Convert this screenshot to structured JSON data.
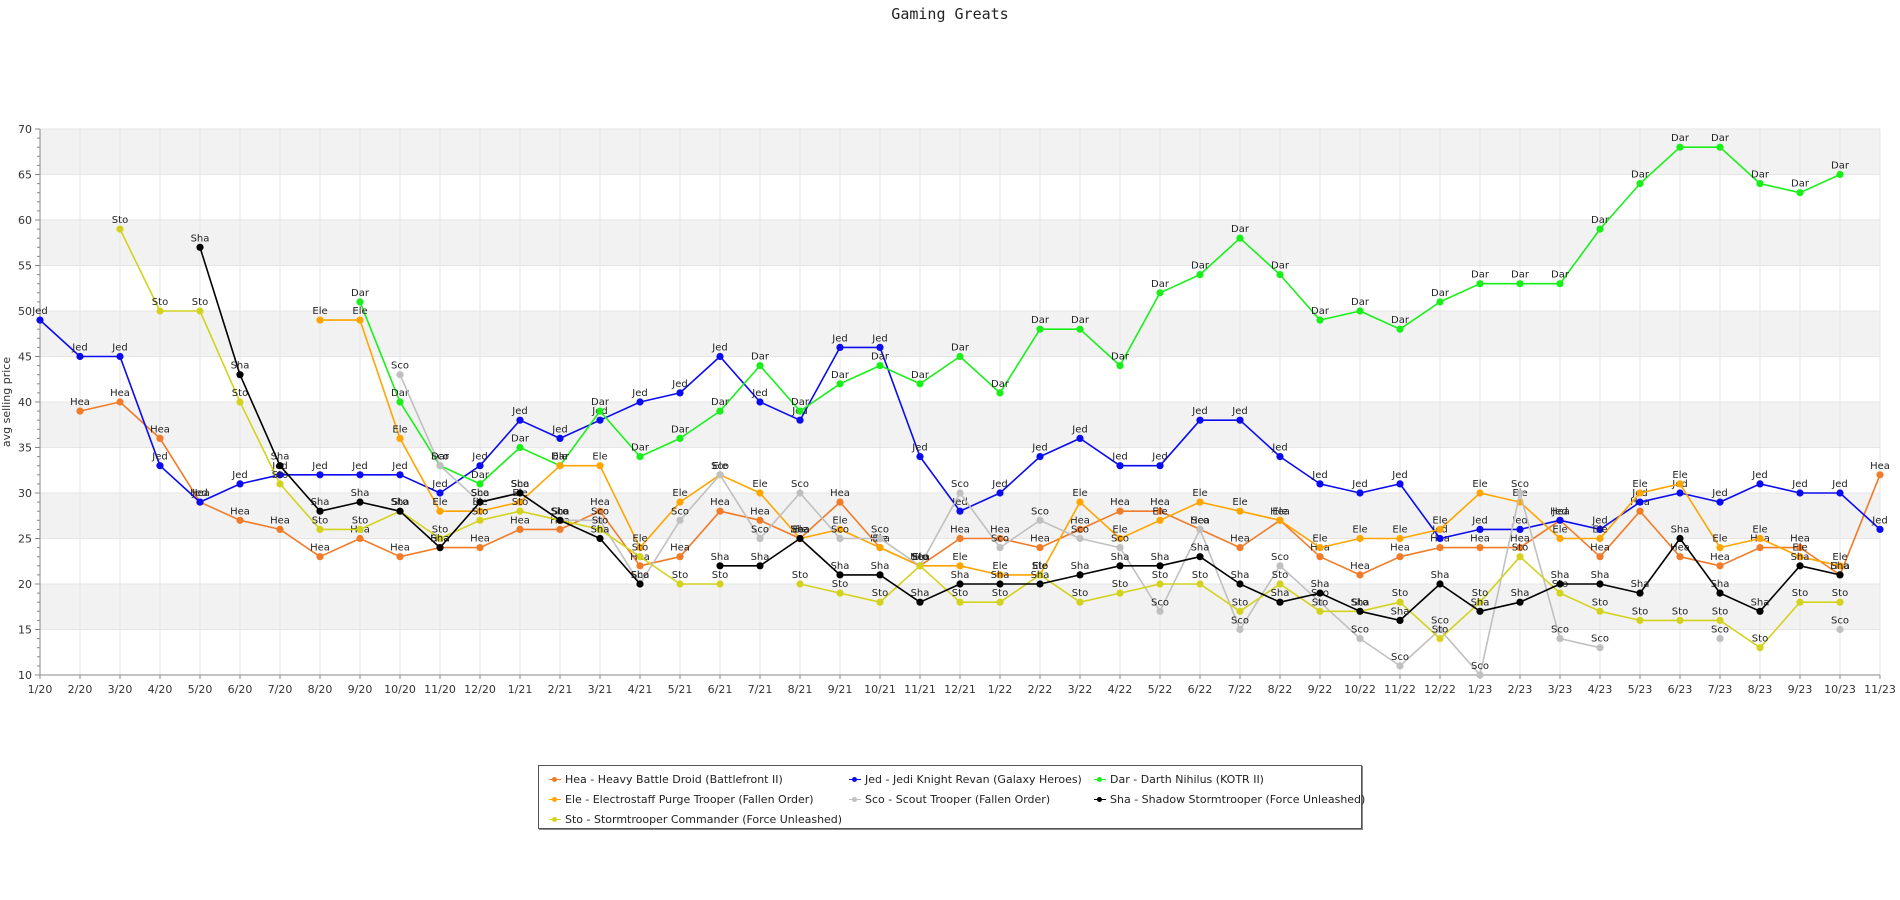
{
  "chart_data": {
    "type": "line",
    "title": "Gaming Greats",
    "ylabel": "avg selling price",
    "xlabel": "",
    "ylim": [
      10,
      70
    ],
    "yticks": [
      10,
      15,
      20,
      25,
      30,
      35,
      40,
      45,
      50,
      55,
      60,
      65,
      70
    ],
    "grid": true,
    "legend": "bottom-center",
    "categories": [
      "1/20",
      "2/20",
      "3/20",
      "4/20",
      "5/20",
      "6/20",
      "7/20",
      "8/20",
      "9/20",
      "10/20",
      "11/20",
      "12/20",
      "1/21",
      "2/21",
      "3/21",
      "4/21",
      "5/21",
      "6/21",
      "7/21",
      "8/21",
      "9/21",
      "10/21",
      "11/21",
      "12/21",
      "1/22",
      "2/22",
      "3/22",
      "4/22",
      "5/22",
      "6/22",
      "7/22",
      "8/22",
      "9/22",
      "10/22",
      "11/22",
      "12/22",
      "1/23",
      "2/23",
      "3/23",
      "4/23",
      "5/23",
      "6/23",
      "7/23",
      "8/23",
      "9/23",
      "10/23",
      "11/23"
    ],
    "series": [
      {
        "name": "Hea - Heavy Battle Droid (Battlefront II)",
        "short": "Hea",
        "color": "#f07b28",
        "values": [
          null,
          39,
          40,
          36,
          29,
          27,
          26,
          23,
          25,
          23,
          24,
          24,
          26,
          26,
          28,
          22,
          23,
          28,
          27,
          25,
          29,
          24,
          22,
          25,
          25,
          24,
          26,
          28,
          28,
          26,
          24,
          27,
          23,
          21,
          23,
          24,
          24,
          24,
          27,
          23,
          28,
          23,
          22,
          24,
          24,
          21,
          32
        ]
      },
      {
        "name": "Jed - Jedi Knight Revan (Galaxy Heroes)",
        "short": "Jed",
        "color": "#0b0bf0",
        "values": [
          49,
          45,
          45,
          33,
          29,
          31,
          32,
          32,
          32,
          32,
          30,
          33,
          38,
          36,
          38,
          40,
          41,
          45,
          40,
          38,
          46,
          46,
          34,
          28,
          30,
          34,
          36,
          33,
          33,
          38,
          38,
          34,
          31,
          30,
          31,
          25,
          26,
          26,
          27,
          26,
          29,
          30,
          29,
          31,
          30,
          30,
          26
        ]
      },
      {
        "name": "Dar - Darth Nihilus (KOTR II)",
        "short": "Dar",
        "color": "#19f019",
        "values": [
          null,
          null,
          null,
          null,
          null,
          null,
          null,
          null,
          51,
          40,
          33,
          31,
          35,
          33,
          39,
          34,
          36,
          39,
          44,
          39,
          42,
          44,
          42,
          45,
          41,
          48,
          48,
          44,
          52,
          54,
          58,
          54,
          49,
          50,
          48,
          51,
          53,
          53,
          53,
          59,
          64,
          68,
          68,
          64,
          63,
          65,
          null
        ]
      },
      {
        "name": "Ele - Electrostaff Purge Trooper (Fallen Order)",
        "short": "Ele",
        "color": "#ffa500",
        "values": [
          null,
          null,
          null,
          null,
          null,
          null,
          null,
          49,
          49,
          36,
          28,
          28,
          29,
          33,
          33,
          24,
          29,
          32,
          30,
          25,
          26,
          24,
          22,
          22,
          21,
          21,
          29,
          25,
          27,
          29,
          28,
          27,
          24,
          25,
          25,
          26,
          30,
          29,
          25,
          25,
          30,
          31,
          24,
          25,
          23,
          22,
          null
        ]
      },
      {
        "name": "Sco - Scout Trooper (Fallen Order)",
        "short": "Sco",
        "color": "#c0c0c0",
        "values": [
          null,
          null,
          null,
          null,
          null,
          null,
          null,
          null,
          null,
          43,
          33,
          29,
          30,
          27,
          27,
          20,
          27,
          32,
          25,
          30,
          25,
          25,
          22,
          30,
          24,
          27,
          25,
          24,
          17,
          26,
          15,
          22,
          18,
          14,
          11,
          15,
          10,
          30,
          14,
          13,
          null,
          null,
          14,
          null,
          null,
          15,
          null
        ]
      },
      {
        "name": "Sto - Stormtrooper Commander (Force Unleashed)",
        "short": "Sto",
        "color": "#d3d31e",
        "values": [
          null,
          null,
          59,
          50,
          50,
          40,
          31,
          26,
          26,
          28,
          25,
          27,
          28,
          27,
          26,
          23,
          20,
          20,
          null,
          20,
          19,
          18,
          22,
          18,
          18,
          21,
          18,
          19,
          20,
          20,
          17,
          20,
          17,
          17,
          18,
          14,
          18,
          23,
          19,
          17,
          16,
          16,
          16,
          13,
          18,
          18,
          null
        ]
      },
      {
        "name": "Sha - Shadow Stormtrooper (Force Unleashed)",
        "short": "Sha",
        "color": "#000000",
        "values": [
          null,
          null,
          null,
          null,
          57,
          43,
          33,
          28,
          29,
          28,
          24,
          29,
          30,
          27,
          25,
          20,
          null,
          22,
          22,
          25,
          21,
          21,
          18,
          20,
          20,
          20,
          21,
          22,
          22,
          23,
          20,
          18,
          19,
          17,
          16,
          20,
          17,
          18,
          20,
          20,
          19,
          25,
          19,
          17,
          22,
          21,
          null
        ]
      }
    ]
  }
}
